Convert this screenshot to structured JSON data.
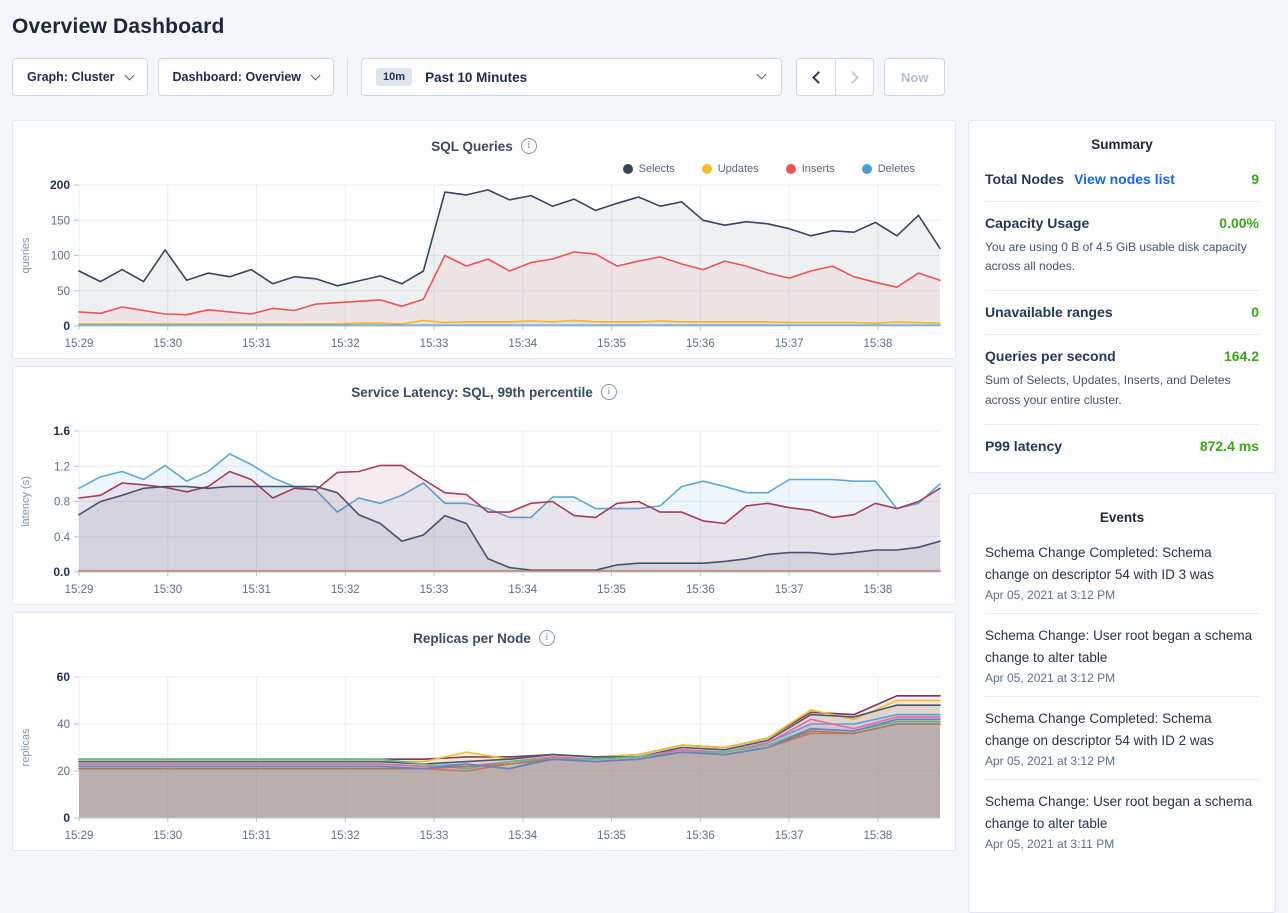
{
  "page": {
    "title": "Overview Dashboard"
  },
  "icons": {
    "info": "i"
  },
  "toolbar": {
    "graph_dropdown": "Graph: Cluster",
    "dashboard_dropdown": "Dashboard: Overview",
    "time_badge": "10m",
    "time_label": "Past 10 Minutes",
    "now_label": "Now"
  },
  "colors": {
    "accent_green": "#3ba51c",
    "link_blue": "#1c63e8",
    "grid": "#e9eef5",
    "axis": "#b8c6da",
    "tick_text": "#5d7089",
    "tick_text_bold": "#1e3050",
    "ylabel_text": "#8295ab"
  },
  "chart_data": [
    {
      "type": "area",
      "title": "SQL Queries",
      "ylabel": "queries",
      "yticks": [
        "0",
        "50",
        "100",
        "150",
        "200"
      ],
      "ymax": 200,
      "xticks": [
        "15:29",
        "15:30",
        "15:31",
        "15:32",
        "15:33",
        "15:34",
        "15:35",
        "15:36",
        "15:37",
        "15:38"
      ],
      "duration_min": 9.7,
      "legend": true,
      "fill_opacity": 0.08,
      "series": [
        {
          "name": "Selects",
          "color": "#39455c",
          "values": [
            78,
            63,
            80,
            63,
            108,
            65,
            75,
            70,
            80,
            60,
            70,
            67,
            57,
            64,
            71,
            60,
            78,
            190,
            186,
            193,
            179,
            185,
            170,
            180,
            164,
            174,
            183,
            170,
            176,
            150,
            143,
            148,
            145,
            138,
            128,
            135,
            133,
            147,
            128,
            157,
            110
          ]
        },
        {
          "name": "Updates",
          "color": "#f2be2c",
          "values": [
            3,
            3,
            3,
            3,
            3,
            3,
            3,
            3,
            3,
            3,
            3,
            3,
            3,
            4,
            4,
            3,
            8,
            5,
            6,
            6,
            6,
            7,
            6,
            8,
            6,
            6,
            6,
            7,
            6,
            6,
            6,
            6,
            6,
            5,
            5,
            5,
            5,
            4,
            6,
            5,
            4
          ]
        },
        {
          "name": "Inserts",
          "color": "#ea5357",
          "values": [
            20,
            18,
            27,
            22,
            17,
            16,
            23,
            20,
            17,
            25,
            22,
            31,
            33,
            35,
            37,
            28,
            38,
            100,
            85,
            95,
            78,
            90,
            95,
            105,
            102,
            85,
            92,
            98,
            88,
            80,
            92,
            85,
            75,
            68,
            78,
            85,
            70,
            62,
            55,
            75,
            65
          ]
        },
        {
          "name": "Deletes",
          "color": "#4b9fd4",
          "values": [
            1,
            1,
            1,
            1,
            1,
            1,
            1,
            1,
            1,
            1,
            1,
            1,
            1,
            1,
            1,
            1,
            1,
            1,
            1,
            1,
            1,
            1,
            1,
            1,
            1,
            1,
            1,
            1,
            1,
            1,
            1,
            1,
            1,
            1,
            1,
            1,
            1,
            1,
            1,
            1,
            1
          ]
        }
      ]
    },
    {
      "type": "area",
      "title": "Service Latency: SQL, 99th percentile",
      "ylabel": "latency (s)",
      "yticks": [
        "0.0",
        "0.4",
        "0.8",
        "1.2",
        "1.6"
      ],
      "ymax": 1.6,
      "xticks": [
        "15:29",
        "15:30",
        "15:31",
        "15:32",
        "15:33",
        "15:34",
        "15:35",
        "15:36",
        "15:37",
        "15:38"
      ],
      "duration_min": 9.7,
      "legend": false,
      "fill_opacity": 0.1,
      "series": [
        {
          "color": "#5ca8dd",
          "values": [
            0.95,
            1.08,
            1.14,
            1.05,
            1.21,
            1.03,
            1.14,
            1.34,
            1.22,
            1.07,
            0.97,
            0.93,
            0.68,
            0.84,
            0.78,
            0.87,
            1.01,
            0.78,
            0.78,
            0.72,
            0.62,
            0.62,
            0.85,
            0.85,
            0.72,
            0.72,
            0.72,
            0.75,
            0.97,
            1.03,
            0.97,
            0.9,
            0.9,
            1.05,
            1.05,
            1.05,
            1.03,
            1.03,
            0.72,
            0.78,
            1.0
          ]
        },
        {
          "color": "#a63d57",
          "values": [
            0.84,
            0.87,
            1.01,
            0.99,
            0.96,
            0.91,
            0.97,
            1.14,
            1.05,
            0.84,
            0.95,
            0.93,
            1.13,
            1.14,
            1.21,
            1.21,
            1.05,
            0.9,
            0.88,
            0.68,
            0.68,
            0.78,
            0.8,
            0.64,
            0.62,
            0.78,
            0.8,
            0.68,
            0.68,
            0.58,
            0.55,
            0.75,
            0.78,
            0.73,
            0.7,
            0.62,
            0.65,
            0.78,
            0.72,
            0.8,
            0.95
          ]
        },
        {
          "color": "#47536e",
          "values": [
            0.65,
            0.8,
            0.87,
            0.95,
            0.97,
            0.97,
            0.95,
            0.97,
            0.97,
            0.97,
            0.97,
            0.97,
            0.9,
            0.65,
            0.55,
            0.35,
            0.42,
            0.64,
            0.55,
            0.15,
            0.05,
            0.02,
            0.02,
            0.02,
            0.02,
            0.08,
            0.1,
            0.1,
            0.1,
            0.1,
            0.12,
            0.15,
            0.2,
            0.22,
            0.22,
            0.2,
            0.22,
            0.25,
            0.25,
            0.28,
            0.35
          ]
        },
        {
          "color": "#c07b52",
          "values": [
            0.01,
            0.01,
            0.01,
            0.01,
            0.01,
            0.01,
            0.01,
            0.01,
            0.01,
            0.01,
            0.01,
            0.01,
            0.01,
            0.01,
            0.01,
            0.01,
            0.01,
            0.01,
            0.01,
            0.01,
            0.01,
            0.01,
            0.01,
            0.01,
            0.01,
            0.01,
            0.01,
            0.01,
            0.01,
            0.01,
            0.01,
            0.01,
            0.01,
            0.01,
            0.01,
            0.01,
            0.01,
            0.01,
            0.01,
            0.01,
            0.01
          ]
        }
      ]
    },
    {
      "type": "area",
      "title": "Replicas per Node",
      "ylabel": "replicas",
      "yticks": [
        "0",
        "20",
        "40",
        "60"
      ],
      "ymax": 60,
      "xticks": [
        "15:29",
        "15:30",
        "15:31",
        "15:32",
        "15:33",
        "15:34",
        "15:35",
        "15:36",
        "15:37",
        "15:38"
      ],
      "duration_min": 9.7,
      "legend": false,
      "fill_opacity": 0.1,
      "series": [
        {
          "color": "#7f3361",
          "values": [
            25,
            25,
            25,
            25,
            25,
            25,
            25,
            25,
            25,
            26,
            26,
            27,
            26,
            27,
            31,
            30,
            34,
            45,
            44,
            52,
            52
          ]
        },
        {
          "color": "#f2be2c",
          "values": [
            24,
            24,
            24,
            24,
            24,
            24,
            24,
            24,
            24,
            28,
            25,
            27,
            26,
            27,
            31,
            30,
            34,
            46,
            42,
            50,
            50
          ]
        },
        {
          "color": "#475872",
          "values": [
            24,
            24,
            24,
            24,
            24,
            24,
            24,
            24,
            23,
            24,
            25,
            27,
            26,
            26,
            30,
            29,
            33,
            44,
            43,
            48,
            48
          ]
        },
        {
          "color": "#5f9edd",
          "values": [
            23,
            23,
            23,
            23,
            23,
            23,
            23,
            23,
            22,
            23,
            21,
            26,
            25,
            26,
            29,
            28,
            32,
            40,
            40,
            44,
            44
          ]
        },
        {
          "color": "#e86ca4",
          "values": [
            23,
            23,
            23,
            23,
            23,
            23,
            23,
            23,
            22,
            22,
            24,
            26,
            25,
            26,
            29,
            28,
            32,
            42,
            38,
            43,
            43
          ]
        },
        {
          "color": "#5dbd8c",
          "values": [
            25,
            25,
            25,
            25,
            25,
            25,
            25,
            25,
            23,
            21,
            24,
            25,
            25,
            26,
            28,
            28,
            31,
            38,
            37,
            41,
            41
          ]
        },
        {
          "color": "#e0734f",
          "values": [
            21,
            21,
            21,
            21,
            21,
            21,
            21,
            21,
            21,
            20,
            23,
            25,
            24,
            25,
            28,
            27,
            30,
            36,
            36,
            40,
            40
          ]
        },
        {
          "color": "#a97e56",
          "values": [
            21,
            21,
            21,
            21,
            21,
            21,
            21,
            21,
            21,
            22,
            23,
            25,
            24,
            25,
            28,
            27,
            30,
            37,
            36,
            40,
            40
          ]
        },
        {
          "color": "#6b7fc4",
          "values": [
            22,
            22,
            22,
            22,
            22,
            22,
            22,
            22,
            21,
            23,
            21,
            25,
            24,
            25,
            28,
            27,
            30,
            38,
            37,
            42,
            42
          ]
        }
      ]
    }
  ],
  "summary": {
    "title": "Summary",
    "rows": [
      {
        "label": "Total Nodes",
        "link": "View nodes list",
        "value": "9"
      },
      {
        "label": "Capacity Usage",
        "value": "0.00%",
        "subtext": "You are using 0 B of 4.5 GiB usable disk capacity across all nodes."
      },
      {
        "label": "Unavailable ranges",
        "value": "0"
      },
      {
        "label": "Queries per second",
        "value": "164.2",
        "subtext": "Sum of Selects, Updates, Inserts, and Deletes across your entire cluster."
      },
      {
        "label": "P99 latency",
        "value": "872.4 ms"
      }
    ]
  },
  "events": {
    "title": "Events",
    "items": [
      {
        "text": "Schema Change Completed: Schema change on descriptor 54 with ID 3 was",
        "time": "Apr 05, 2021 at 3:12 PM"
      },
      {
        "text": "Schema Change: User root began a schema change to alter table",
        "time": "Apr 05, 2021 at 3:12 PM"
      },
      {
        "text": "Schema Change Completed: Schema change on descriptor 54 with ID 2 was",
        "time": "Apr 05, 2021 at 3:12 PM"
      },
      {
        "text": "Schema Change: User root began a schema change to alter table",
        "time": "Apr 05, 2021 at 3:11 PM"
      }
    ]
  }
}
